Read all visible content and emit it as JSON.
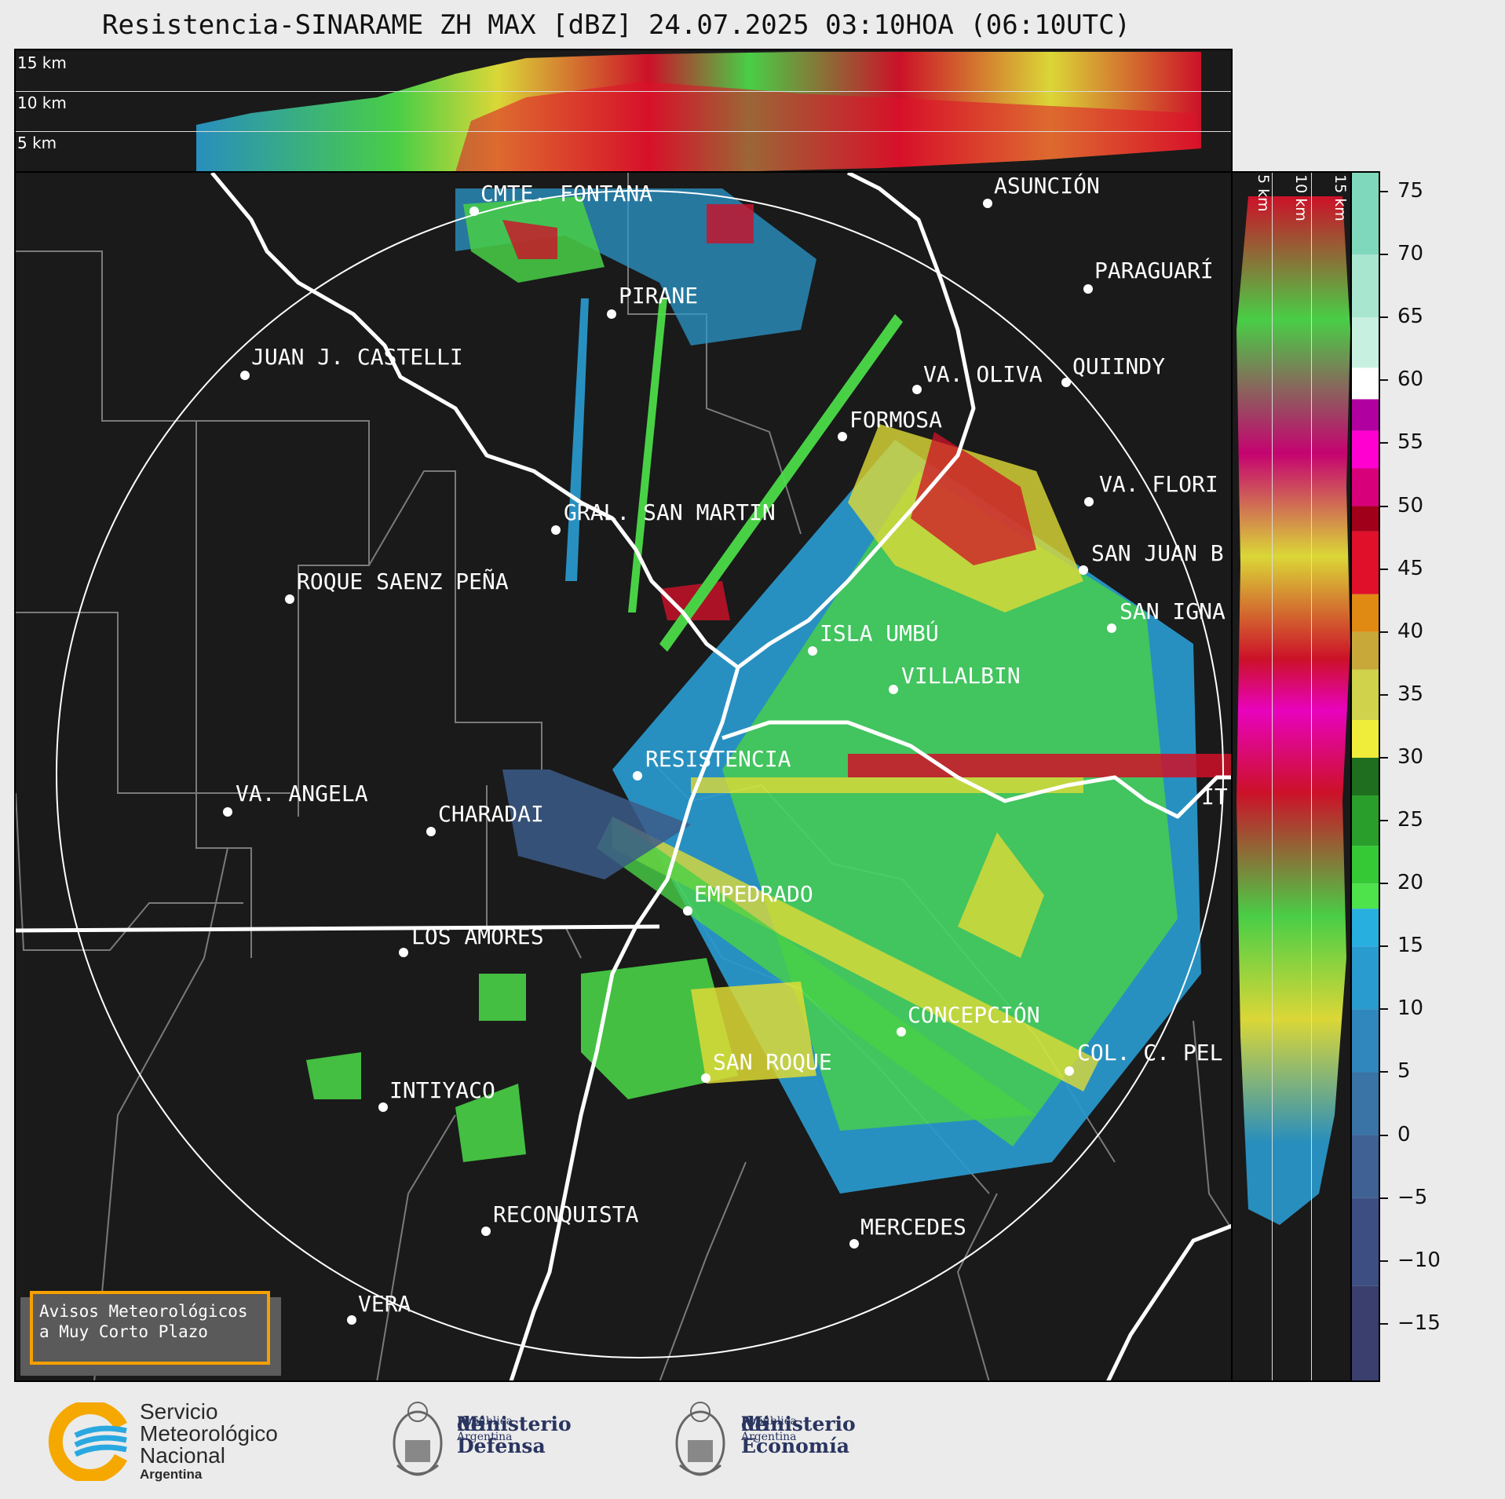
{
  "title": "Resistencia-SINARAME ZH MAX [dBZ] 24.07.2025 03:10HOA (06:10UTC)",
  "top_panel": {
    "height_labels": [
      "15 km",
      "10 km",
      "5 km"
    ]
  },
  "side_panel": {
    "height_labels": [
      "5 km",
      "10 km",
      "15 km"
    ]
  },
  "cities": [
    {
      "name": "CMTE. FONTANA"
    },
    {
      "name": "ASUNCIÓN"
    },
    {
      "name": "PARAGUARÍ"
    },
    {
      "name": "PIRANE"
    },
    {
      "name": "JUAN J. CASTELLI"
    },
    {
      "name": "VA. OLIVA"
    },
    {
      "name": "QUIINDY"
    },
    {
      "name": "FORMOSA"
    },
    {
      "name": "VA. FLORI"
    },
    {
      "name": "GRAL. SAN MARTIN"
    },
    {
      "name": "SAN JUAN B"
    },
    {
      "name": "ROQUE SAENZ PEÑA"
    },
    {
      "name": "SAN IGNA"
    },
    {
      "name": "ISLA UMBÚ"
    },
    {
      "name": "VILLALBIN"
    },
    {
      "name": "RESISTENCIA"
    },
    {
      "name": "VA. ANGELA"
    },
    {
      "name": "CHARADAI"
    },
    {
      "name": "IT"
    },
    {
      "name": "EMPEDRADO"
    },
    {
      "name": "LOS AMORES"
    },
    {
      "name": "CONCEPCIÓN"
    },
    {
      "name": "SAN ROQUE"
    },
    {
      "name": "COL. C. PEL"
    },
    {
      "name": "INTIYACO"
    },
    {
      "name": "RECONQUISTA"
    },
    {
      "name": "MERCEDES"
    },
    {
      "name": "VERA"
    }
  ],
  "colorbar": {
    "unit": "dBZ",
    "ticks": [
      "75",
      "70",
      "65",
      "60",
      "55",
      "50",
      "45",
      "40",
      "35",
      "30",
      "25",
      "20",
      "15",
      "10",
      "5",
      "0",
      "−5",
      "−10",
      "−15"
    ],
    "range": [
      -19.5,
      76.5
    ],
    "stops": [
      {
        "from": -19.5,
        "to": -12,
        "color": "#3a3f6e"
      },
      {
        "from": -12,
        "to": -5,
        "color": "#3d4f82"
      },
      {
        "from": -5,
        "to": 0,
        "color": "#3f6193"
      },
      {
        "from": 0,
        "to": 5,
        "color": "#3a73a6"
      },
      {
        "from": 5,
        "to": 10,
        "color": "#2f87bd"
      },
      {
        "from": 10,
        "to": 15,
        "color": "#2a9bcf"
      },
      {
        "from": 15,
        "to": 18,
        "color": "#27afe0"
      },
      {
        "from": 18,
        "to": 20,
        "color": "#4ee24b"
      },
      {
        "from": 20,
        "to": 23,
        "color": "#36c936"
      },
      {
        "from": 23,
        "to": 27,
        "color": "#2a9e2a"
      },
      {
        "from": 27,
        "to": 30,
        "color": "#1f6e1f"
      },
      {
        "from": 30,
        "to": 33,
        "color": "#f0ec3a"
      },
      {
        "from": 33,
        "to": 37,
        "color": "#cfd24a"
      },
      {
        "from": 37,
        "to": 40,
        "color": "#c9a83a"
      },
      {
        "from": 40,
        "to": 43,
        "color": "#e08a14"
      },
      {
        "from": 43,
        "to": 48,
        "color": "#e0102a"
      },
      {
        "from": 48,
        "to": 50,
        "color": "#a0001a"
      },
      {
        "from": 50,
        "to": 53,
        "color": "#d8007a"
      },
      {
        "from": 53,
        "to": 56,
        "color": "#ff00d0"
      },
      {
        "from": 56,
        "to": 58.5,
        "color": "#b000a0"
      },
      {
        "from": 58.5,
        "to": 61,
        "color": "#ffffff"
      },
      {
        "from": 61,
        "to": 65,
        "color": "#c8f0e0"
      },
      {
        "from": 65,
        "to": 70,
        "color": "#a8e6d0"
      },
      {
        "from": 70,
        "to": 76.5,
        "color": "#80d8bc"
      }
    ]
  },
  "notice": {
    "line1": "Avisos Meteorológicos",
    "line2": "a Muy Corto Plazo"
  },
  "footer": {
    "smn": [
      "Servicio",
      "Meteorológico",
      "Nacional",
      "Argentina"
    ],
    "defensa": [
      "Ministerio",
      "de Defensa",
      "República Argentina"
    ],
    "economia": [
      "Ministerio",
      "de Economía",
      "República Argentina"
    ]
  }
}
